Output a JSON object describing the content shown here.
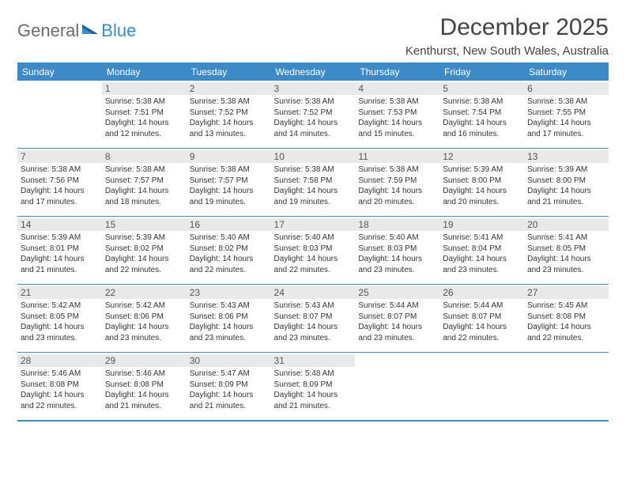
{
  "accent_color": "#3d8ac7",
  "logo": {
    "general": "General",
    "blue": "Blue"
  },
  "title": "December 2025",
  "location": "Kenthurst, New South Wales, Australia",
  "weekdays": [
    "Sunday",
    "Monday",
    "Tuesday",
    "Wednesday",
    "Thursday",
    "Friday",
    "Saturday"
  ],
  "start_weekday": 1,
  "days": [
    {
      "n": 1,
      "sunrise": "5:38 AM",
      "sunset": "7:51 PM",
      "dl_h": 14,
      "dl_m": 12
    },
    {
      "n": 2,
      "sunrise": "5:38 AM",
      "sunset": "7:52 PM",
      "dl_h": 14,
      "dl_m": 13
    },
    {
      "n": 3,
      "sunrise": "5:38 AM",
      "sunset": "7:52 PM",
      "dl_h": 14,
      "dl_m": 14
    },
    {
      "n": 4,
      "sunrise": "5:38 AM",
      "sunset": "7:53 PM",
      "dl_h": 14,
      "dl_m": 15
    },
    {
      "n": 5,
      "sunrise": "5:38 AM",
      "sunset": "7:54 PM",
      "dl_h": 14,
      "dl_m": 16
    },
    {
      "n": 6,
      "sunrise": "5:38 AM",
      "sunset": "7:55 PM",
      "dl_h": 14,
      "dl_m": 17
    },
    {
      "n": 7,
      "sunrise": "5:38 AM",
      "sunset": "7:56 PM",
      "dl_h": 14,
      "dl_m": 17
    },
    {
      "n": 8,
      "sunrise": "5:38 AM",
      "sunset": "7:57 PM",
      "dl_h": 14,
      "dl_m": 18
    },
    {
      "n": 9,
      "sunrise": "5:38 AM",
      "sunset": "7:57 PM",
      "dl_h": 14,
      "dl_m": 19
    },
    {
      "n": 10,
      "sunrise": "5:38 AM",
      "sunset": "7:58 PM",
      "dl_h": 14,
      "dl_m": 19
    },
    {
      "n": 11,
      "sunrise": "5:38 AM",
      "sunset": "7:59 PM",
      "dl_h": 14,
      "dl_m": 20
    },
    {
      "n": 12,
      "sunrise": "5:39 AM",
      "sunset": "8:00 PM",
      "dl_h": 14,
      "dl_m": 20
    },
    {
      "n": 13,
      "sunrise": "5:39 AM",
      "sunset": "8:00 PM",
      "dl_h": 14,
      "dl_m": 21
    },
    {
      "n": 14,
      "sunrise": "5:39 AM",
      "sunset": "8:01 PM",
      "dl_h": 14,
      "dl_m": 21
    },
    {
      "n": 15,
      "sunrise": "5:39 AM",
      "sunset": "8:02 PM",
      "dl_h": 14,
      "dl_m": 22
    },
    {
      "n": 16,
      "sunrise": "5:40 AM",
      "sunset": "8:02 PM",
      "dl_h": 14,
      "dl_m": 22
    },
    {
      "n": 17,
      "sunrise": "5:40 AM",
      "sunset": "8:03 PM",
      "dl_h": 14,
      "dl_m": 22
    },
    {
      "n": 18,
      "sunrise": "5:40 AM",
      "sunset": "8:03 PM",
      "dl_h": 14,
      "dl_m": 23
    },
    {
      "n": 19,
      "sunrise": "5:41 AM",
      "sunset": "8:04 PM",
      "dl_h": 14,
      "dl_m": 23
    },
    {
      "n": 20,
      "sunrise": "5:41 AM",
      "sunset": "8:05 PM",
      "dl_h": 14,
      "dl_m": 23
    },
    {
      "n": 21,
      "sunrise": "5:42 AM",
      "sunset": "8:05 PM",
      "dl_h": 14,
      "dl_m": 23
    },
    {
      "n": 22,
      "sunrise": "5:42 AM",
      "sunset": "8:06 PM",
      "dl_h": 14,
      "dl_m": 23
    },
    {
      "n": 23,
      "sunrise": "5:43 AM",
      "sunset": "8:06 PM",
      "dl_h": 14,
      "dl_m": 23
    },
    {
      "n": 24,
      "sunrise": "5:43 AM",
      "sunset": "8:07 PM",
      "dl_h": 14,
      "dl_m": 23
    },
    {
      "n": 25,
      "sunrise": "5:44 AM",
      "sunset": "8:07 PM",
      "dl_h": 14,
      "dl_m": 23
    },
    {
      "n": 26,
      "sunrise": "5:44 AM",
      "sunset": "8:07 PM",
      "dl_h": 14,
      "dl_m": 22
    },
    {
      "n": 27,
      "sunrise": "5:45 AM",
      "sunset": "8:08 PM",
      "dl_h": 14,
      "dl_m": 22
    },
    {
      "n": 28,
      "sunrise": "5:46 AM",
      "sunset": "8:08 PM",
      "dl_h": 14,
      "dl_m": 22
    },
    {
      "n": 29,
      "sunrise": "5:46 AM",
      "sunset": "8:08 PM",
      "dl_h": 14,
      "dl_m": 21
    },
    {
      "n": 30,
      "sunrise": "5:47 AM",
      "sunset": "8:09 PM",
      "dl_h": 14,
      "dl_m": 21
    },
    {
      "n": 31,
      "sunrise": "5:48 AM",
      "sunset": "8:09 PM",
      "dl_h": 14,
      "dl_m": 21
    }
  ],
  "labels": {
    "sunrise": "Sunrise:",
    "sunset": "Sunset:",
    "daylight_prefix": "Daylight:",
    "hours_word": "hours",
    "and_word": "and",
    "minutes_word": "minutes."
  }
}
